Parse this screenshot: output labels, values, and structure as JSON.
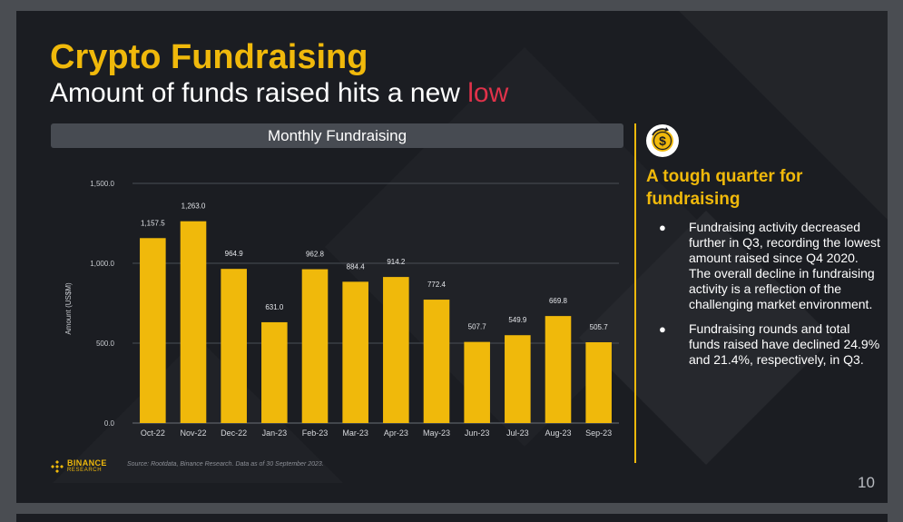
{
  "slide": {
    "title": "Crypto Fundraising",
    "subtitle_main": "Amount of funds raised hits a new ",
    "subtitle_accent": "low",
    "page_number": "10"
  },
  "chart_header": "Monthly Fundraising",
  "side_panel": {
    "icon": "dollar-coin-icon",
    "title": "A tough quarter for fundraising",
    "bullets": [
      "Fundraising activity decreased further in Q3, recording the lowest amount raised since Q4 2020. The overall decline in fundraising activity is a reflection of the challenging market environment.",
      "Fundraising rounds and total funds raised have declined 24.9% and 21.4%, respectively, in Q3."
    ]
  },
  "footer": {
    "logo_name": "BINANCE",
    "logo_sub": "RESEARCH",
    "source": "Source: Rootdata, Binance Research. Data as of 30 September 2023."
  },
  "colors": {
    "accent": "#f0b90b",
    "highlight": "#e0324a",
    "background": "#1b1d22"
  },
  "chart_data": {
    "type": "bar",
    "title": "Monthly Fundraising",
    "categories": [
      "Oct-22",
      "Nov-22",
      "Dec-22",
      "Jan-23",
      "Feb-23",
      "Mar-23",
      "Apr-23",
      "May-23",
      "Jun-23",
      "Jul-23",
      "Aug-23",
      "Sep-23"
    ],
    "values": [
      1157.5,
      1263.0,
      964.9,
      631.0,
      962.8,
      884.4,
      914.2,
      772.4,
      507.7,
      549.9,
      669.8,
      505.7
    ],
    "value_labels": [
      "1,157.5",
      "1,263.0",
      "964.9",
      "631.0",
      "962.8",
      "884.4",
      "914.2",
      "772.4",
      "507.7",
      "549.9",
      "669.8",
      "505.7"
    ],
    "ylabel": "Amount (US$M)",
    "xlabel": "",
    "ylim": [
      0,
      1500
    ],
    "yticks": [
      0,
      500,
      1000,
      1500
    ],
    "ytick_labels": [
      "0.0",
      "500.0",
      "1,000.0",
      "1,500.0"
    ],
    "grid": true,
    "bar_color": "#f0b90b"
  }
}
